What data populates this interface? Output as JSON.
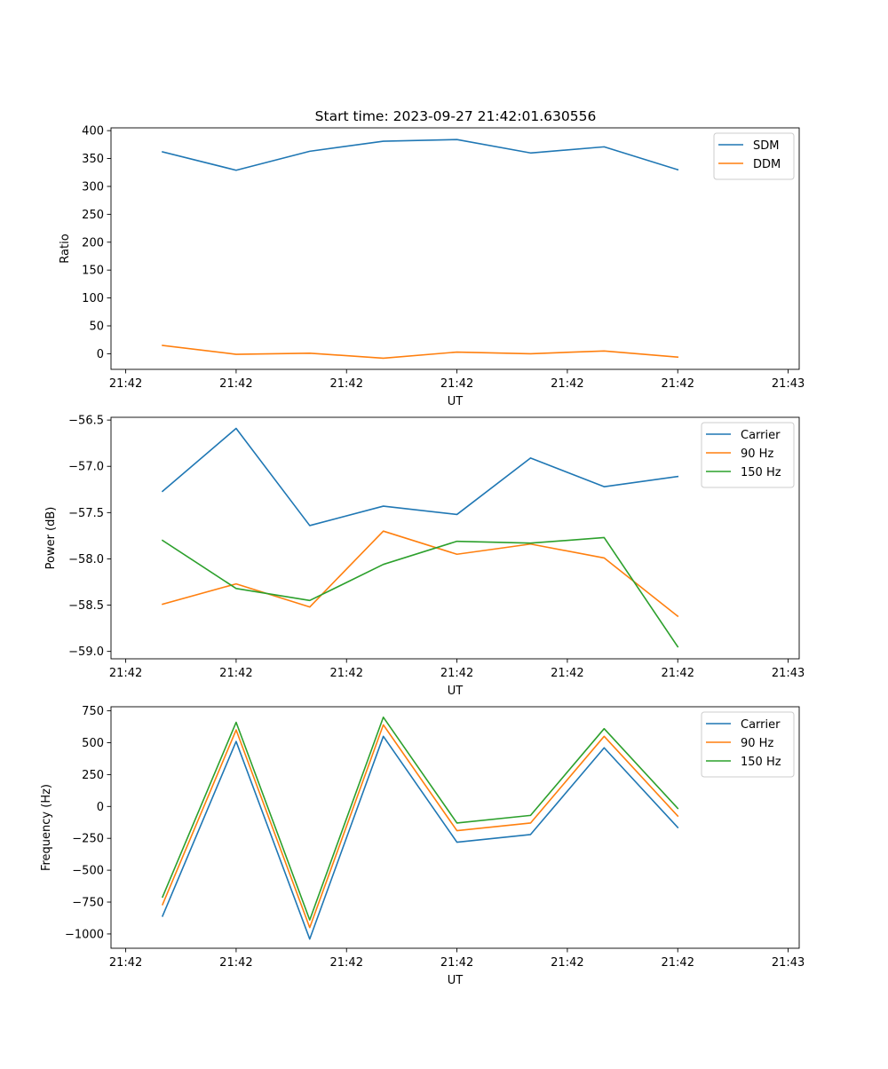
{
  "figure": {
    "title": "Start time: 2023-09-27 21:42:01.630556"
  },
  "colors": {
    "blue": "#1f77b4",
    "orange": "#ff7f0e",
    "green": "#2ca02c"
  },
  "chart_data": [
    {
      "type": "line",
      "title": "Start time: 2023-09-27 21:42:01.630556",
      "xlabel": "UT",
      "ylabel": "Ratio",
      "xlim": [
        -0.7,
        8.65
      ],
      "ylim": [
        -28,
        405
      ],
      "x_ticks": [
        -0.5,
        1,
        2.5,
        4,
        5.5,
        7,
        8.5
      ],
      "x_tick_labels": [
        "21:42",
        "21:42",
        "21:42",
        "21:42",
        "21:42",
        "21:42",
        "21:43"
      ],
      "y_ticks": [
        0,
        50,
        100,
        150,
        200,
        250,
        300,
        350,
        400
      ],
      "y_tick_labels": [
        "0",
        "50",
        "100",
        "150",
        "200",
        "250",
        "300",
        "350",
        "400"
      ],
      "x": [
        0,
        1,
        2,
        3,
        4,
        5,
        6,
        7
      ],
      "legend_position": "upper right",
      "series": [
        {
          "name": "SDM",
          "color": "#1f77b4",
          "values": [
            362,
            329,
            363,
            381,
            384,
            360,
            371,
            330
          ]
        },
        {
          "name": "DDM",
          "color": "#ff7f0e",
          "values": [
            15,
            -1,
            1,
            -8,
            3,
            0,
            5,
            -6
          ]
        }
      ]
    },
    {
      "type": "line",
      "title": "",
      "xlabel": "UT",
      "ylabel": "Power (dB)",
      "xlim": [
        -0.7,
        8.65
      ],
      "ylim": [
        -59.08,
        -56.47
      ],
      "x_ticks": [
        -0.5,
        1,
        2.5,
        4,
        5.5,
        7,
        8.5
      ],
      "x_tick_labels": [
        "21:42",
        "21:42",
        "21:42",
        "21:42",
        "21:42",
        "21:42",
        "21:43"
      ],
      "y_ticks": [
        -59.0,
        -58.5,
        -58.0,
        -57.5,
        -57.0,
        -56.5
      ],
      "y_tick_labels": [
        "−59.0",
        "−58.5",
        "−58.0",
        "−57.5",
        "−57.0",
        "−56.5"
      ],
      "x": [
        0,
        1,
        2,
        3,
        4,
        5,
        6,
        7
      ],
      "legend_position": "upper right",
      "series": [
        {
          "name": "Carrier",
          "color": "#1f77b4",
          "values": [
            -57.27,
            -56.59,
            -57.64,
            -57.43,
            -57.52,
            -56.91,
            -57.22,
            -57.11
          ]
        },
        {
          "name": "90 Hz",
          "color": "#ff7f0e",
          "values": [
            -58.49,
            -58.27,
            -58.52,
            -57.7,
            -57.95,
            -57.84,
            -57.99,
            -58.62
          ]
        },
        {
          "name": "150 Hz",
          "color": "#2ca02c",
          "values": [
            -57.8,
            -58.32,
            -58.45,
            -58.06,
            -57.81,
            -57.83,
            -57.77,
            -58.95
          ]
        }
      ]
    },
    {
      "type": "line",
      "title": "",
      "xlabel": "UT",
      "ylabel": "Frequency (Hz)",
      "xlim": [
        -0.7,
        8.65
      ],
      "ylim": [
        -1112,
        782
      ],
      "x_ticks": [
        -0.5,
        1,
        2.5,
        4,
        5.5,
        7,
        8.5
      ],
      "x_tick_labels": [
        "21:42",
        "21:42",
        "21:42",
        "21:42",
        "21:42",
        "21:42",
        "21:43"
      ],
      "y_ticks": [
        -1000,
        -750,
        -500,
        -250,
        0,
        250,
        500,
        750
      ],
      "y_tick_labels": [
        "−1000",
        "−750",
        "−500",
        "−250",
        "0",
        "250",
        "500",
        "750"
      ],
      "x": [
        0,
        1,
        2,
        3,
        4,
        5,
        6,
        7
      ],
      "legend_position": "upper right",
      "series": [
        {
          "name": "Carrier",
          "color": "#1f77b4",
          "values": [
            -860,
            510,
            -1040,
            550,
            -280,
            -220,
            460,
            -165
          ]
        },
        {
          "name": "90 Hz",
          "color": "#ff7f0e",
          "values": [
            -770,
            600,
            -950,
            640,
            -190,
            -130,
            550,
            -75
          ]
        },
        {
          "name": "150 Hz",
          "color": "#2ca02c",
          "values": [
            -710,
            660,
            -890,
            700,
            -130,
            -70,
            610,
            -15
          ]
        }
      ]
    }
  ]
}
